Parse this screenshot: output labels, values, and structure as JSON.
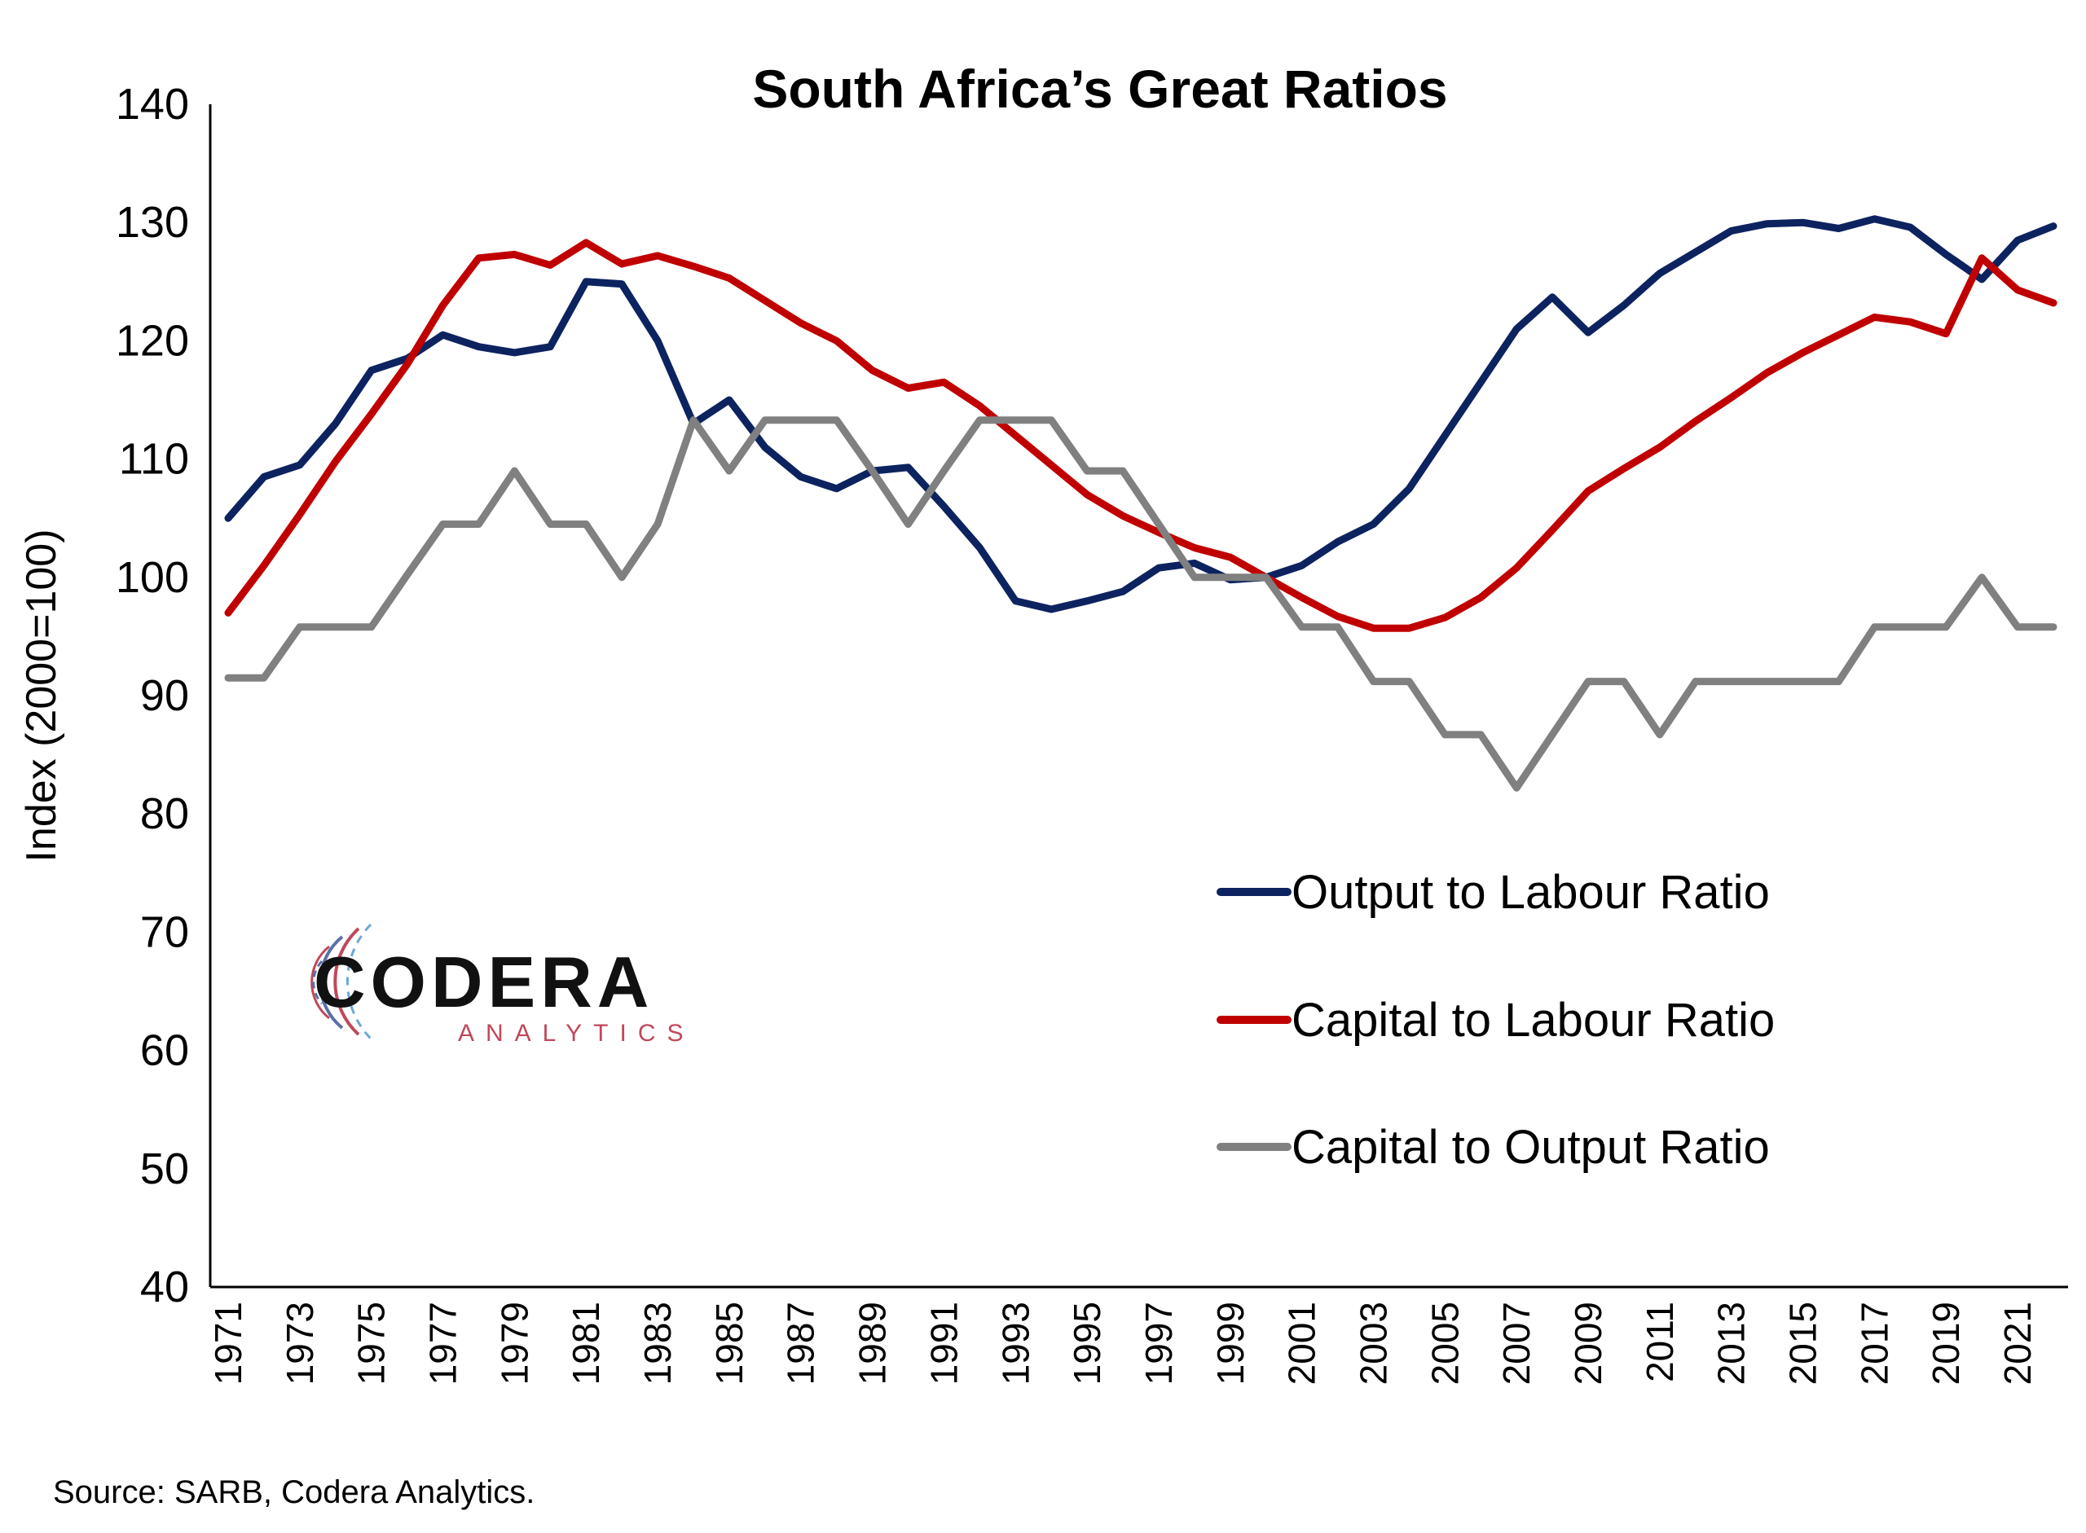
{
  "chart_data": {
    "type": "line",
    "title": "South Africa’s Great Ratios",
    "ylabel": "Index (2000=100)",
    "ylim": [
      40,
      140
    ],
    "yticks": [
      40,
      50,
      60,
      70,
      80,
      90,
      100,
      110,
      120,
      130,
      140
    ],
    "x": [
      1971,
      1972,
      1973,
      1974,
      1975,
      1976,
      1977,
      1978,
      1979,
      1980,
      1981,
      1982,
      1983,
      1984,
      1985,
      1986,
      1987,
      1988,
      1989,
      1990,
      1991,
      1992,
      1993,
      1994,
      1995,
      1996,
      1997,
      1998,
      1999,
      2000,
      2001,
      2002,
      2003,
      2004,
      2005,
      2006,
      2007,
      2008,
      2009,
      2010,
      2011,
      2012,
      2013,
      2014,
      2015,
      2016,
      2017,
      2018,
      2019,
      2020,
      2021,
      2022
    ],
    "xtick_labels": [
      "1971",
      "1973",
      "1975",
      "1977",
      "1979",
      "1981",
      "1983",
      "1985",
      "1987",
      "1989",
      "1991",
      "1993",
      "1995",
      "1997",
      "1999",
      "2001",
      "2003",
      "2005",
      "2007",
      "2009",
      "2011",
      "2013",
      "2015",
      "2017",
      "2019",
      "2021"
    ],
    "grid": false,
    "legend_position": "right-middle",
    "series": [
      {
        "name": "Output to Labour Ratio",
        "color": "#0d2360",
        "values": [
          105,
          108.5,
          109.5,
          113,
          117.5,
          118.5,
          120.5,
          119.5,
          119,
          119.5,
          125,
          124.8,
          120,
          113,
          115,
          111,
          108.5,
          107.5,
          109,
          109.3,
          106,
          102.5,
          98,
          97.3,
          98,
          98.8,
          100.8,
          101.2,
          99.8,
          100,
          101,
          103,
          104.5,
          107.5,
          112,
          116.5,
          121,
          123.7,
          120.7,
          123,
          125.7,
          127.5,
          129.3,
          129.9,
          130,
          129.5,
          130.3,
          129.6,
          127.3,
          125.2,
          128.5,
          129.7
        ]
      },
      {
        "name": "Capital to Labour Ratio",
        "color": "#c00000",
        "values": [
          97,
          101,
          105.3,
          109.8,
          113.8,
          118,
          123,
          127,
          127.3,
          126.4,
          128.3,
          126.5,
          127.2,
          126.3,
          125.3,
          123.4,
          121.5,
          120,
          117.5,
          116,
          116.5,
          114.5,
          112,
          109.5,
          107,
          105.2,
          103.8,
          102.5,
          101.7,
          100,
          98.3,
          96.7,
          95.7,
          95.7,
          96.6,
          98.3,
          100.8,
          104,
          107.3,
          109.2,
          111,
          113.2,
          115.2,
          117.3,
          119,
          120.5,
          122,
          121.6,
          120.6,
          127,
          124.3,
          123.2
        ]
      },
      {
        "name": "Capital to Output Ratio",
        "color": "#808080",
        "values": [
          91.5,
          91.5,
          95.8,
          95.8,
          95.8,
          100.2,
          104.5,
          104.5,
          109,
          104.5,
          104.5,
          100,
          104.5,
          113.3,
          109,
          113.3,
          113.3,
          113.3,
          109,
          104.5,
          109,
          113.3,
          113.3,
          113.3,
          109,
          109,
          104.5,
          100,
          100,
          100,
          95.8,
          95.8,
          91.2,
          91.2,
          86.7,
          86.7,
          82.2,
          86.7,
          91.2,
          91.2,
          86.7,
          91.2,
          91.2,
          91.2,
          91.2,
          91.2,
          95.8,
          95.8,
          95.8,
          100,
          95.8,
          95.8
        ]
      }
    ]
  },
  "source": "Source: SARB, Codera Analytics.",
  "logo": {
    "name": "CODERA",
    "sub": "ANALYTICS"
  }
}
